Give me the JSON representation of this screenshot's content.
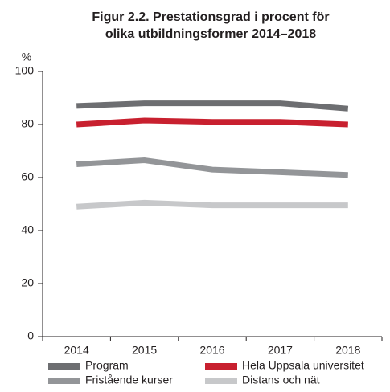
{
  "chart_data": {
    "type": "line",
    "title": [
      "Figur 2.2. Prestationsgrad i procent för",
      "olika utbildningsformer 2014–2018"
    ],
    "ylabel": "%",
    "categories": [
      "2014",
      "2015",
      "2016",
      "2017",
      "2018"
    ],
    "series": [
      {
        "name": "Program",
        "color": "#6d6e71",
        "values": [
          87,
          88,
          88,
          88,
          86
        ]
      },
      {
        "name": "Hela Uppsala universitet",
        "color": "#c8202f",
        "values": [
          80,
          81.5,
          81,
          81,
          80
        ]
      },
      {
        "name": "Fristående kurser",
        "color": "#939598",
        "values": [
          65,
          66.5,
          63,
          62,
          61
        ]
      },
      {
        "name": "Distans och nät",
        "color": "#c7c8ca",
        "values": [
          49,
          50.5,
          49.5,
          49.5,
          49.5
        ]
      }
    ],
    "ylim": [
      0,
      100
    ],
    "yticks": [
      0,
      20,
      40,
      60,
      80,
      100
    ],
    "grid": false
  }
}
